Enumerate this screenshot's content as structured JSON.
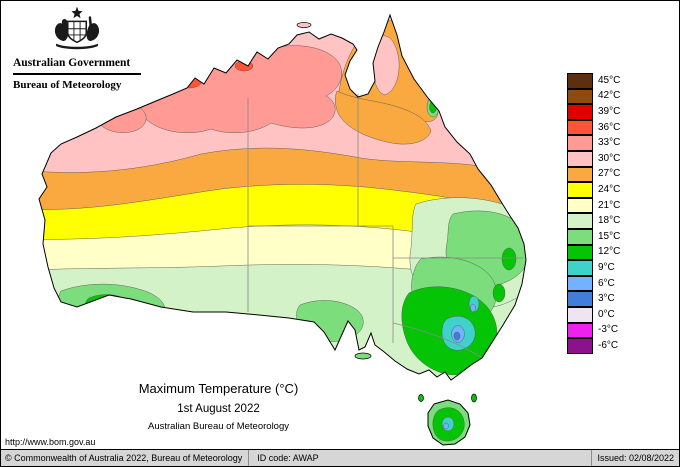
{
  "header": {
    "government": "Australian Government",
    "bureau": "Bureau of Meteorology"
  },
  "map": {
    "title": "Maximum Temperature (°C)",
    "date": "1st August 2022",
    "organisation": "Australian Bureau of Meteorology"
  },
  "footer": {
    "url": "http://www.bom.gov.au",
    "copyright": "© Commonwealth of Australia 2022, Bureau of Meteorology",
    "id_code": "ID code: AWAP",
    "issued": "Issued: 02/08/2022"
  },
  "legend": {
    "unit": "°C",
    "entries": [
      {
        "temp": 45,
        "label": "45°C",
        "color": "#5E2F0D"
      },
      {
        "temp": 42,
        "label": "42°C",
        "color": "#8F4A10"
      },
      {
        "temp": 39,
        "label": "39°C",
        "color": "#E00000"
      },
      {
        "temp": 36,
        "label": "36°C",
        "color": "#FF5435"
      },
      {
        "temp": 33,
        "label": "33°C",
        "color": "#FF9A94"
      },
      {
        "temp": 30,
        "label": "30°C",
        "color": "#FFC3C3"
      },
      {
        "temp": 27,
        "label": "27°C",
        "color": "#F9A93F"
      },
      {
        "temp": 24,
        "label": "24°C",
        "color": "#FFFF00"
      },
      {
        "temp": 21,
        "label": "21°C",
        "color": "#FFFFC8"
      },
      {
        "temp": 18,
        "label": "18°C",
        "color": "#D4F2C8"
      },
      {
        "temp": 15,
        "label": "15°C",
        "color": "#7BDD7B"
      },
      {
        "temp": 12,
        "label": "12°C",
        "color": "#05C405"
      },
      {
        "temp": 9,
        "label": "9°C",
        "color": "#3FD2CB"
      },
      {
        "temp": 6,
        "label": "6°C",
        "color": "#72B2FF"
      },
      {
        "temp": 3,
        "label": "3°C",
        "color": "#3F7EDB"
      },
      {
        "temp": 0,
        "label": "0°C",
        "color": "#EFE4F2"
      },
      {
        "temp": -3,
        "label": "-3°C",
        "color": "#EE22EE"
      },
      {
        "temp": -6,
        "label": "-6°C",
        "color": "#8B128B"
      }
    ]
  }
}
